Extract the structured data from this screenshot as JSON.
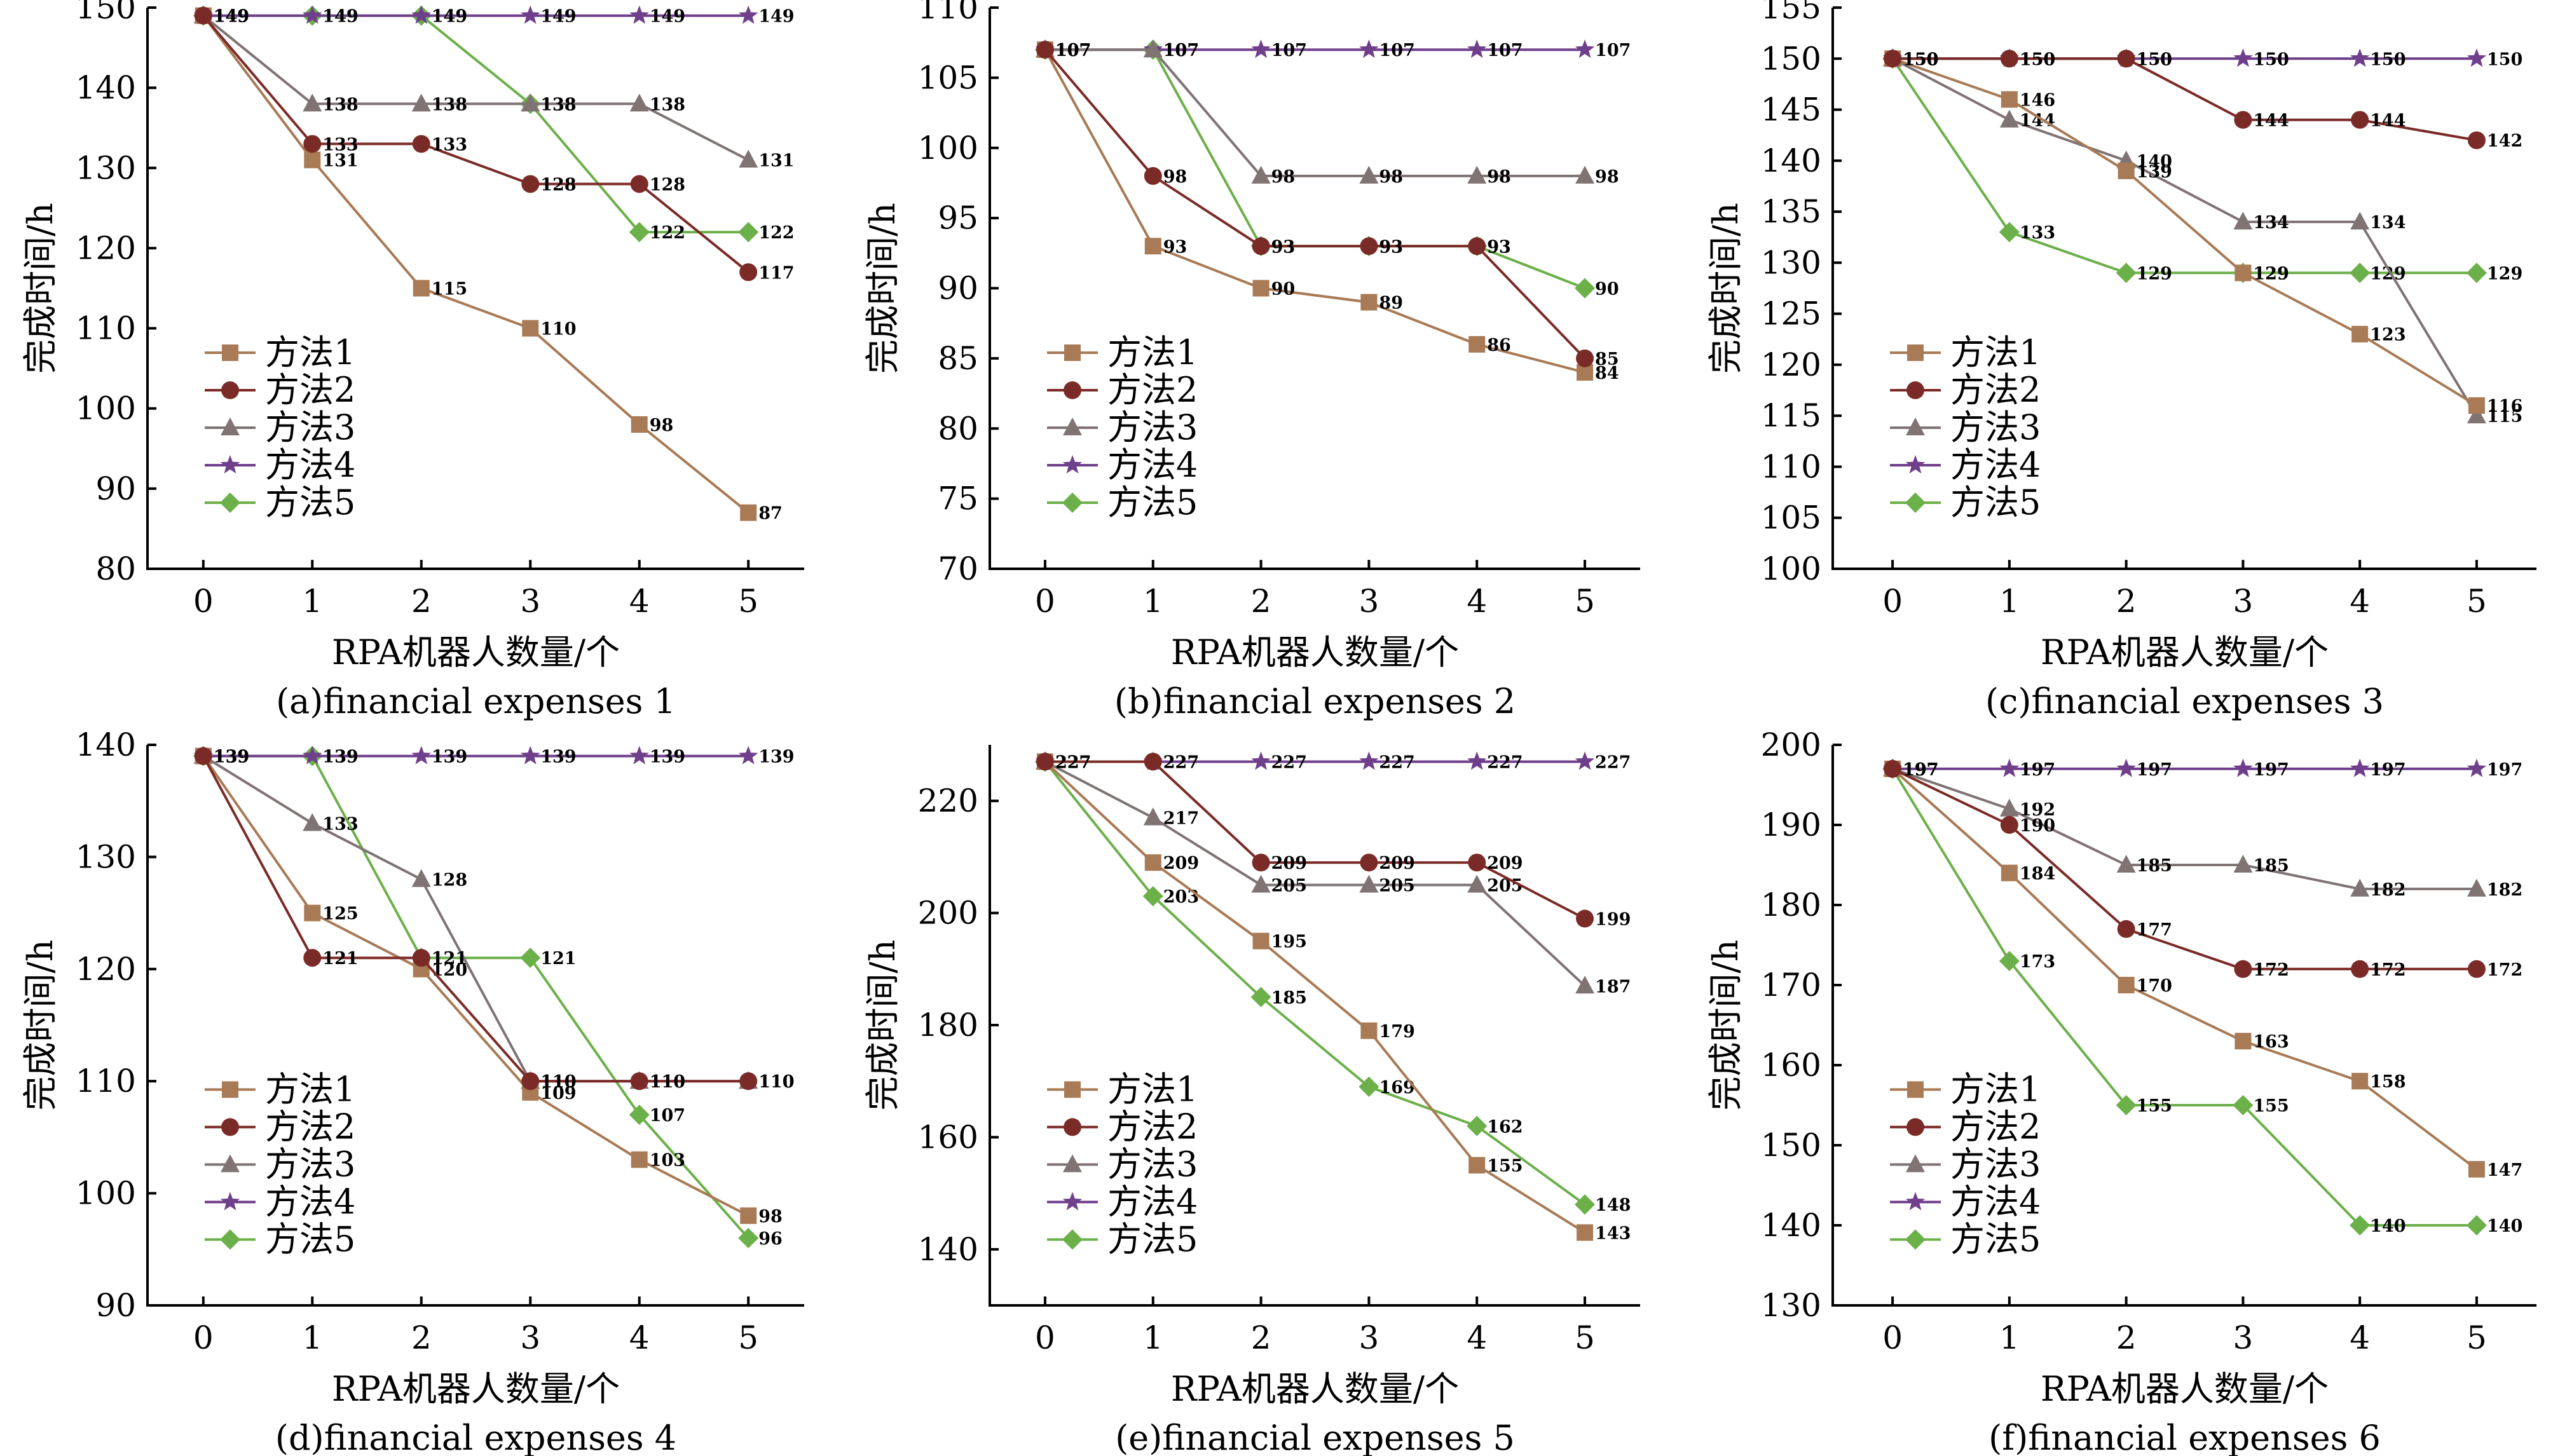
{
  "series_styles": [
    {
      "name": "方法1",
      "color": "#A87A55",
      "marker": "square"
    },
    {
      "name": "方法2",
      "color": "#7B2B27",
      "marker": "circle"
    },
    {
      "name": "方法3",
      "color": "#7F7374",
      "marker": "triangle"
    },
    {
      "name": "方法4",
      "color": "#6F3F8C",
      "marker": "star"
    },
    {
      "name": "方法5",
      "color": "#6CB04A",
      "marker": "diamond"
    }
  ],
  "chart_data": [
    {
      "type": "line",
      "title": "(a)financial expenses 1",
      "xlabel": "RPA机器人数量/个",
      "ylabel": "完成时间/h",
      "x": [
        0,
        1,
        2,
        3,
        4,
        5
      ],
      "xticks": [
        "0",
        "1",
        "2",
        "3",
        "4",
        "5"
      ],
      "ylim": [
        80,
        150
      ],
      "yticks": [
        80,
        90,
        100,
        110,
        120,
        130,
        140,
        150
      ],
      "legend": "lower-left",
      "series": [
        {
          "name": "方法1",
          "values": [
            149,
            131,
            115,
            110,
            98,
            87
          ]
        },
        {
          "name": "方法2",
          "values": [
            149,
            133,
            133,
            128,
            128,
            117
          ]
        },
        {
          "name": "方法3",
          "values": [
            149,
            138,
            138,
            138,
            138,
            131
          ]
        },
        {
          "name": "方法4",
          "values": [
            149,
            149,
            149,
            149,
            149,
            149
          ]
        },
        {
          "name": "方法5",
          "values": [
            149,
            149,
            149,
            138,
            122,
            122
          ]
        }
      ]
    },
    {
      "type": "line",
      "title": "(b)financial expenses 2",
      "xlabel": "RPA机器人数量/个",
      "ylabel": "完成时间/h",
      "x": [
        0,
        1,
        2,
        3,
        4,
        5
      ],
      "xticks": [
        "0",
        "1",
        "2",
        "3",
        "4",
        "5"
      ],
      "ylim": [
        70,
        110
      ],
      "yticks": [
        70,
        75,
        80,
        85,
        90,
        95,
        100,
        105,
        110
      ],
      "legend": "lower-left",
      "series": [
        {
          "name": "方法1",
          "values": [
            107,
            93,
            90,
            89,
            86,
            84
          ]
        },
        {
          "name": "方法2",
          "values": [
            107,
            98,
            93,
            93,
            93,
            85
          ]
        },
        {
          "name": "方法3",
          "values": [
            107,
            107,
            98,
            98,
            98,
            98
          ]
        },
        {
          "name": "方法4",
          "values": [
            107,
            107,
            107,
            107,
            107,
            107
          ]
        },
        {
          "name": "方法5",
          "values": [
            107,
            107,
            93,
            93,
            93,
            90
          ]
        }
      ]
    },
    {
      "type": "line",
      "title": "(c)financial expenses 3",
      "xlabel": "RPA机器人数量/个",
      "ylabel": "完成时间/h",
      "x": [
        0,
        1,
        2,
        3,
        4,
        5
      ],
      "xticks": [
        "0",
        "1",
        "2",
        "3",
        "4",
        "5"
      ],
      "ylim": [
        100,
        155
      ],
      "yticks": [
        100,
        105,
        110,
        115,
        120,
        125,
        130,
        135,
        140,
        145,
        150,
        155
      ],
      "legend": "lower-left",
      "series": [
        {
          "name": "方法1",
          "values": [
            150,
            146,
            139,
            129,
            123,
            116
          ]
        },
        {
          "name": "方法2",
          "values": [
            150,
            150,
            150,
            144,
            144,
            142
          ]
        },
        {
          "name": "方法3",
          "values": [
            150,
            144,
            140,
            134,
            134,
            115
          ]
        },
        {
          "name": "方法4",
          "values": [
            150,
            150,
            150,
            150,
            150,
            150
          ]
        },
        {
          "name": "方法5",
          "values": [
            150,
            133,
            129,
            129,
            129,
            129
          ]
        }
      ]
    },
    {
      "type": "line",
      "title": "(d)financial expenses 4",
      "xlabel": "RPA机器人数量/个",
      "ylabel": "完成时间/h",
      "x": [
        0,
        1,
        2,
        3,
        4,
        5
      ],
      "xticks": [
        "0",
        "1",
        "2",
        "3",
        "4",
        "5"
      ],
      "ylim": [
        90,
        140
      ],
      "yticks": [
        90,
        100,
        110,
        120,
        130,
        140
      ],
      "legend": "lower-left",
      "series": [
        {
          "name": "方法1",
          "values": [
            139,
            125,
            120,
            109,
            103,
            98
          ]
        },
        {
          "name": "方法2",
          "values": [
            139,
            121,
            121,
            110,
            110,
            110
          ]
        },
        {
          "name": "方法3",
          "values": [
            139,
            133,
            128,
            110,
            110,
            110
          ]
        },
        {
          "name": "方法4",
          "values": [
            139,
            139,
            139,
            139,
            139,
            139
          ]
        },
        {
          "name": "方法5",
          "values": [
            139,
            139,
            121,
            121,
            107,
            96
          ]
        }
      ]
    },
    {
      "type": "line",
      "title": "(e)financial expenses 5",
      "xlabel": "RPA机器人数量/个",
      "ylabel": "完成时间/h",
      "x": [
        0,
        1,
        2,
        3,
        4,
        5
      ],
      "xticks": [
        "0",
        "1",
        "2",
        "3",
        "4",
        "5"
      ],
      "ylim": [
        130,
        230
      ],
      "yticks": [
        140,
        160,
        180,
        200,
        220
      ],
      "legend": "lower-left",
      "series": [
        {
          "name": "方法1",
          "values": [
            227,
            209,
            195,
            179,
            155,
            143
          ]
        },
        {
          "name": "方法2",
          "values": [
            227,
            227,
            209,
            209,
            209,
            199
          ]
        },
        {
          "name": "方法3",
          "values": [
            227,
            217,
            205,
            205,
            205,
            187
          ]
        },
        {
          "name": "方法4",
          "values": [
            227,
            227,
            227,
            227,
            227,
            227
          ]
        },
        {
          "name": "方法5",
          "values": [
            227,
            203,
            185,
            169,
            162,
            148
          ]
        }
      ]
    },
    {
      "type": "line",
      "title": "(f)financial expenses 6",
      "xlabel": "RPA机器人数量/个",
      "ylabel": "完成时间/h",
      "x": [
        0,
        1,
        2,
        3,
        4,
        5
      ],
      "xticks": [
        "0",
        "1",
        "2",
        "3",
        "4",
        "5"
      ],
      "ylim": [
        130,
        200
      ],
      "yticks": [
        130,
        140,
        150,
        160,
        170,
        180,
        190,
        200
      ],
      "legend": "lower-left",
      "series": [
        {
          "name": "方法1",
          "values": [
            197,
            184,
            170,
            163,
            158,
            147
          ]
        },
        {
          "name": "方法2",
          "values": [
            197,
            190,
            177,
            172,
            172,
            172
          ]
        },
        {
          "name": "方法3",
          "values": [
            197,
            192,
            185,
            185,
            182,
            182
          ]
        },
        {
          "name": "方法4",
          "values": [
            197,
            197,
            197,
            197,
            197,
            197
          ]
        },
        {
          "name": "方法5",
          "values": [
            197,
            173,
            155,
            155,
            140,
            140
          ]
        }
      ]
    }
  ]
}
